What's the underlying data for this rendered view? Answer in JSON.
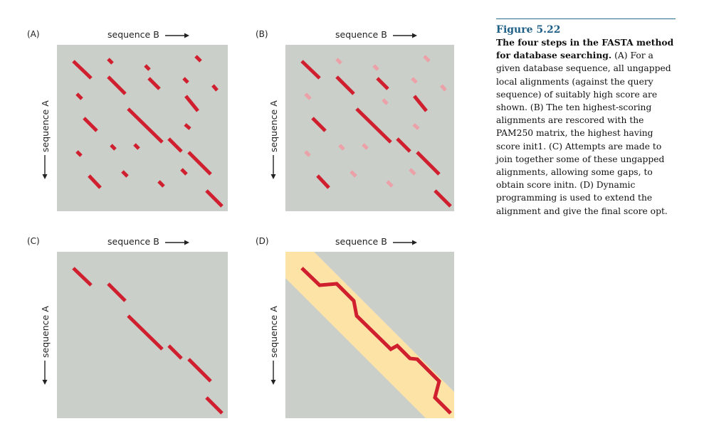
{
  "panels": [
    {
      "letter": "(A)",
      "x_label": "sequence B",
      "y_label": "sequence A"
    },
    {
      "letter": "(B)",
      "x_label": "sequence B",
      "y_label": "sequence A"
    },
    {
      "letter": "(C)",
      "x_label": "sequence B",
      "y_label": "sequence A"
    },
    {
      "letter": "(D)",
      "x_label": "sequence B",
      "y_label": "sequence A"
    }
  ],
  "colors": {
    "plot_bg": "#cbcfca",
    "alignment": "#d0202f",
    "alignment_faded": "#eba1a8",
    "band": "#fde3a6",
    "caption_heading": "#1f5f86"
  },
  "caption": {
    "figure_label": "Figure 5.22",
    "title": "The four steps in the FASTA method for database searching.",
    "text": "(A) For a given database sequence, all ungapped local alignments (against the query sequence) of suitably high score are shown. (B) The ten highest-scoring alignments are rescored with the PAM250 matrix, the highest having score init1. (C) Attempts are made to join together some of these ungapped alignments, allowing some gaps, to obtain score initn. (D) Dynamic programming is used to extend the alignment and give the final score opt."
  }
}
